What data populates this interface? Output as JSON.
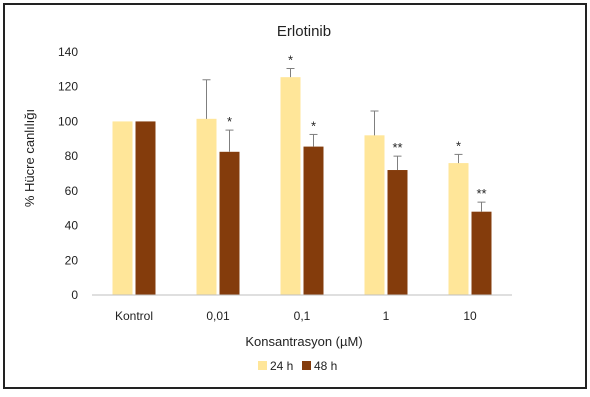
{
  "chart_data": {
    "type": "bar",
    "title": "Erlotinib",
    "xlabel": "Konsantrasyon (µM)",
    "ylabel": "% Hücre canlılığı",
    "categories": [
      "Kontrol",
      "0,01",
      "0,1",
      "1",
      "10"
    ],
    "ylim": [
      0,
      140
    ],
    "yticks": [
      0,
      20,
      40,
      60,
      80,
      100,
      120,
      140
    ],
    "grid": false,
    "legend_position": "bottom",
    "series": [
      {
        "name": "24 h",
        "color": "#FFE699",
        "values": [
          100,
          101.5,
          125.5,
          92,
          76
        ],
        "error": [
          0,
          22.5,
          5,
          14,
          5
        ],
        "annotations": [
          "",
          "",
          "*",
          "",
          "*"
        ]
      },
      {
        "name": "48 h",
        "color": "#843C0C",
        "values": [
          100,
          82.5,
          85.5,
          72,
          48
        ],
        "error": [
          0,
          12.5,
          7,
          8,
          5.5
        ],
        "annotations": [
          "",
          "*",
          "*",
          "**",
          "**"
        ]
      }
    ]
  }
}
